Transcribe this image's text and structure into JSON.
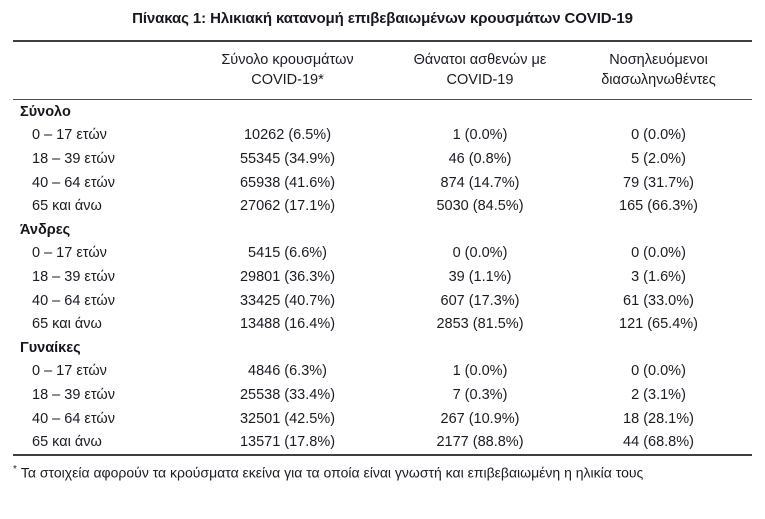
{
  "title": "Πίνακας 1: Ηλικιακή κατανομή επιβεβαιωμένων κρουσμάτων COVID-19",
  "table": {
    "columns": [
      {
        "line1": "Σύνολο κρουσμάτων",
        "line2": "COVID-19*"
      },
      {
        "line1": "Θάνατοι ασθενών με",
        "line2": "COVID-19"
      },
      {
        "line1": "Νοσηλευόμενοι",
        "line2": "διασωληνωθέντες"
      }
    ],
    "sections": [
      {
        "header": "Σύνολο",
        "rows": [
          {
            "label": "0 – 17 ετών",
            "cases": "10262 (6.5%)",
            "deaths": "1 (0.0%)",
            "intubated": "0 (0.0%)"
          },
          {
            "label": "18 – 39 ετών",
            "cases": "55345 (34.9%)",
            "deaths": "46 (0.8%)",
            "intubated": "5 (2.0%)"
          },
          {
            "label": "40 – 64 ετών",
            "cases": "65938 (41.6%)",
            "deaths": "874 (14.7%)",
            "intubated": "79 (31.7%)"
          },
          {
            "label": "65 και άνω",
            "cases": "27062 (17.1%)",
            "deaths": "5030 (84.5%)",
            "intubated": "165 (66.3%)"
          }
        ]
      },
      {
        "header": "Άνδρες",
        "rows": [
          {
            "label": "0 – 17 ετών",
            "cases": "5415 (6.6%)",
            "deaths": "0 (0.0%)",
            "intubated": "0 (0.0%)"
          },
          {
            "label": "18 – 39 ετών",
            "cases": "29801 (36.3%)",
            "deaths": "39 (1.1%)",
            "intubated": "3 (1.6%)"
          },
          {
            "label": "40 – 64 ετών",
            "cases": "33425 (40.7%)",
            "deaths": "607 (17.3%)",
            "intubated": "61 (33.0%)"
          },
          {
            "label": "65 και άνω",
            "cases": "13488 (16.4%)",
            "deaths": "2853 (81.5%)",
            "intubated": "121 (65.4%)"
          }
        ]
      },
      {
        "header": "Γυναίκες",
        "rows": [
          {
            "label": "0 – 17 ετών",
            "cases": "4846 (6.3%)",
            "deaths": "1 (0.0%)",
            "intubated": "0 (0.0%)"
          },
          {
            "label": "18 – 39 ετών",
            "cases": "25538 (33.4%)",
            "deaths": "7 (0.3%)",
            "intubated": "2 (3.1%)"
          },
          {
            "label": "40 – 64 ετών",
            "cases": "32501 (42.5%)",
            "deaths": "267 (10.9%)",
            "intubated": "18 (28.1%)"
          },
          {
            "label": "65 και άνω",
            "cases": "13571 (17.8%)",
            "deaths": "2177 (88.8%)",
            "intubated": "44 (68.8%)"
          }
        ]
      }
    ]
  },
  "footnote": {
    "marker": "*",
    "text": "Τα στοιχεία αφορούν τα κρούσματα εκείνα για τα οποία είναι γνωστή και επιβεβαιωμένη η ηλικία τους"
  }
}
